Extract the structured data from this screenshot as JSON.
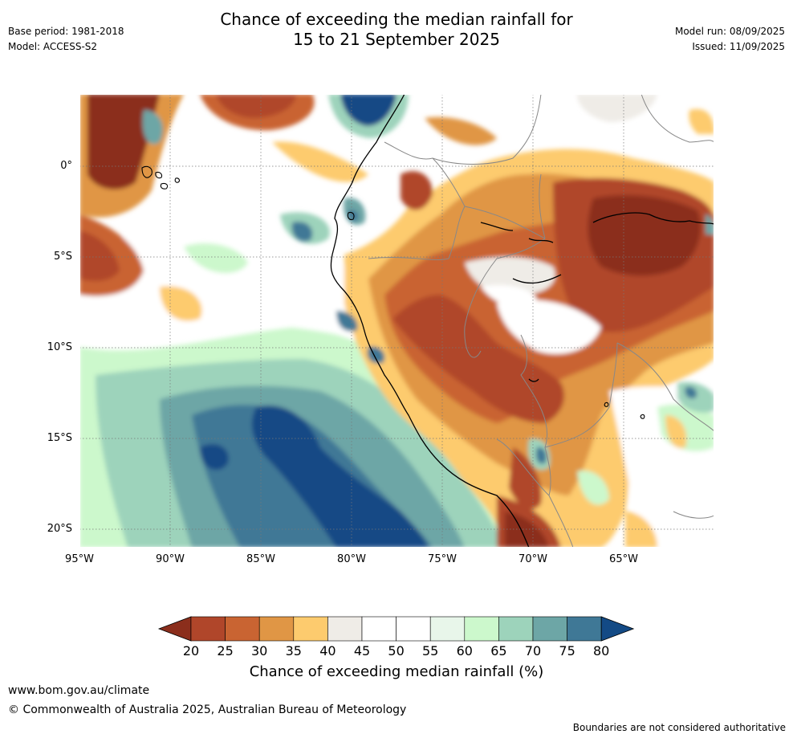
{
  "header": {
    "title_line1": "Chance of exceeding the median rainfall for",
    "title_line2": "15 to 21 September 2025",
    "base_period": "Base period: 1981-2018",
    "model": "Model: ACCESS-S2",
    "model_run": "Model run: 08/09/2025",
    "issued": "Issued: 11/09/2025"
  },
  "map": {
    "lon_labels": [
      "95°W",
      "90°W",
      "85°W",
      "80°W",
      "75°W",
      "70°W",
      "65°W"
    ],
    "lat_labels": [
      "0°",
      "5°S",
      "10°S",
      "15°S",
      "20°S"
    ]
  },
  "colorbar": {
    "title": "Chance of exceeding median rainfall (%)",
    "ticks": [
      "20",
      "25",
      "30",
      "35",
      "40",
      "45",
      "50",
      "55",
      "60",
      "65",
      "70",
      "75",
      "80"
    ],
    "colors": [
      "#8b2e1c",
      "#b0462a",
      "#c96432",
      "#e09645",
      "#fdcb6e",
      "#efece7",
      "#ffffff",
      "#ffffff",
      "#e8f6ea",
      "#ccf8cc",
      "#9dd3bb",
      "#6da6a6",
      "#3f7896",
      "#134a85"
    ]
  },
  "footer": {
    "website": "www.bom.gov.au/climate",
    "copyright": "© Commonwealth of Australia 2025, Australian Bureau of Meteorology",
    "disclaimer": "Boundaries are not considered authoritative"
  }
}
